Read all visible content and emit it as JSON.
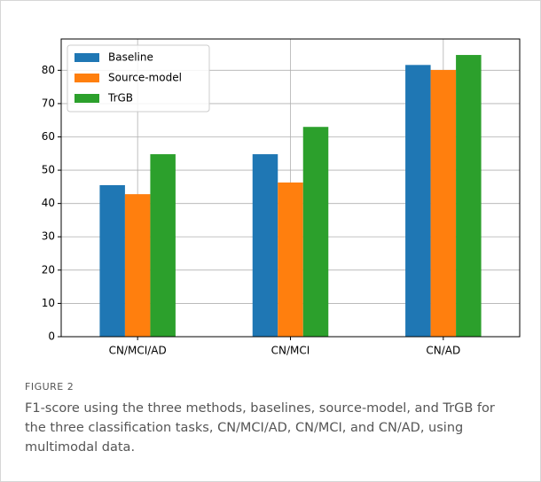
{
  "chart_data": {
    "type": "bar",
    "categories": [
      "CN/MCI/AD",
      "CN/MCI",
      "CN/AD"
    ],
    "series": [
      {
        "name": "Baseline",
        "color": "#1f77b4",
        "values": [
          45.5,
          54.8,
          81.6
        ]
      },
      {
        "name": "Source-model",
        "color": "#ff7f0e",
        "values": [
          42.8,
          46.3,
          80.1
        ]
      },
      {
        "name": "TrGB",
        "color": "#2ca02c",
        "values": [
          54.8,
          63.0,
          84.6
        ]
      }
    ],
    "ylim": [
      0,
      89.4
    ],
    "yticks": [
      0,
      10,
      20,
      30,
      40,
      50,
      60,
      70,
      80
    ],
    "grid": true,
    "legend": "upper left"
  },
  "figure": {
    "label": "FIGURE 2",
    "caption": "F1-score using the three methods, baselines, source-model, and TrGB for the three classification tasks, CN/MCI/AD, CN/MCI, and CN/AD, using multimodal data."
  }
}
